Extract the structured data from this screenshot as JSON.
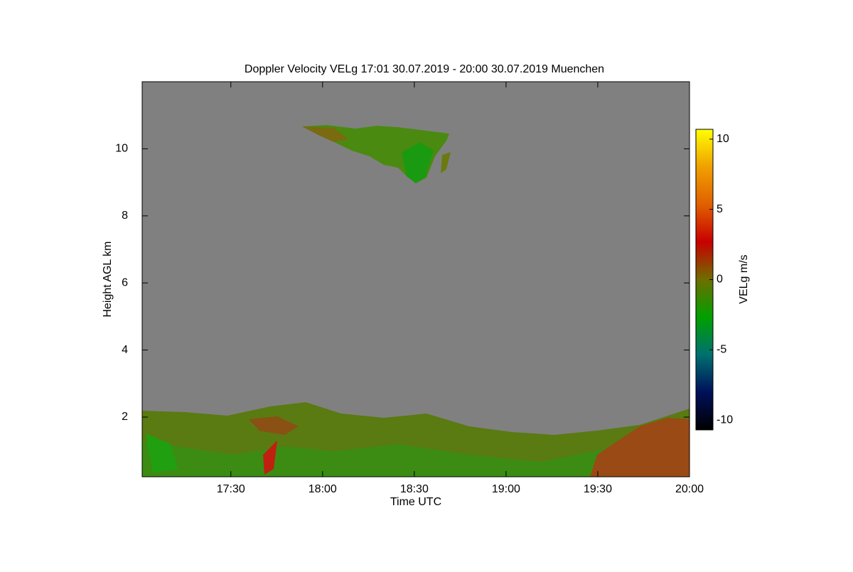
{
  "chart_data": {
    "type": "heatmap",
    "title": "Doppler Velocity VELg   17:01 30.07.2019 - 20:00 30.07.2019 Muenchen",
    "x_label": "Time UTC",
    "y_label": "Height AGL km",
    "colorbar_label": "VELg m/s",
    "xlim": [
      17.0167,
      20
    ],
    "xticks": [
      {
        "value": 17.5,
        "label": "17:30"
      },
      {
        "value": 18,
        "label": "18:00"
      },
      {
        "value": 18.5,
        "label": "18:30"
      },
      {
        "value": 19,
        "label": "19:00"
      },
      {
        "value": 19.5,
        "label": "19:30"
      },
      {
        "value": 20,
        "label": "20:00"
      }
    ],
    "ylim": [
      0.22,
      12
    ],
    "yticks": [
      2,
      4,
      6,
      8,
      10
    ],
    "clim": [
      -10.7,
      10.7
    ],
    "cticks": [
      -10,
      -5,
      0,
      5,
      10
    ],
    "colormap": [
      "#000000",
      "#00105a",
      "#007070",
      "#00a000",
      "#6e6e00",
      "#c80000",
      "#e06000",
      "#f0a000",
      "#ffff00"
    ],
    "background": "#808080",
    "grid": false
  }
}
